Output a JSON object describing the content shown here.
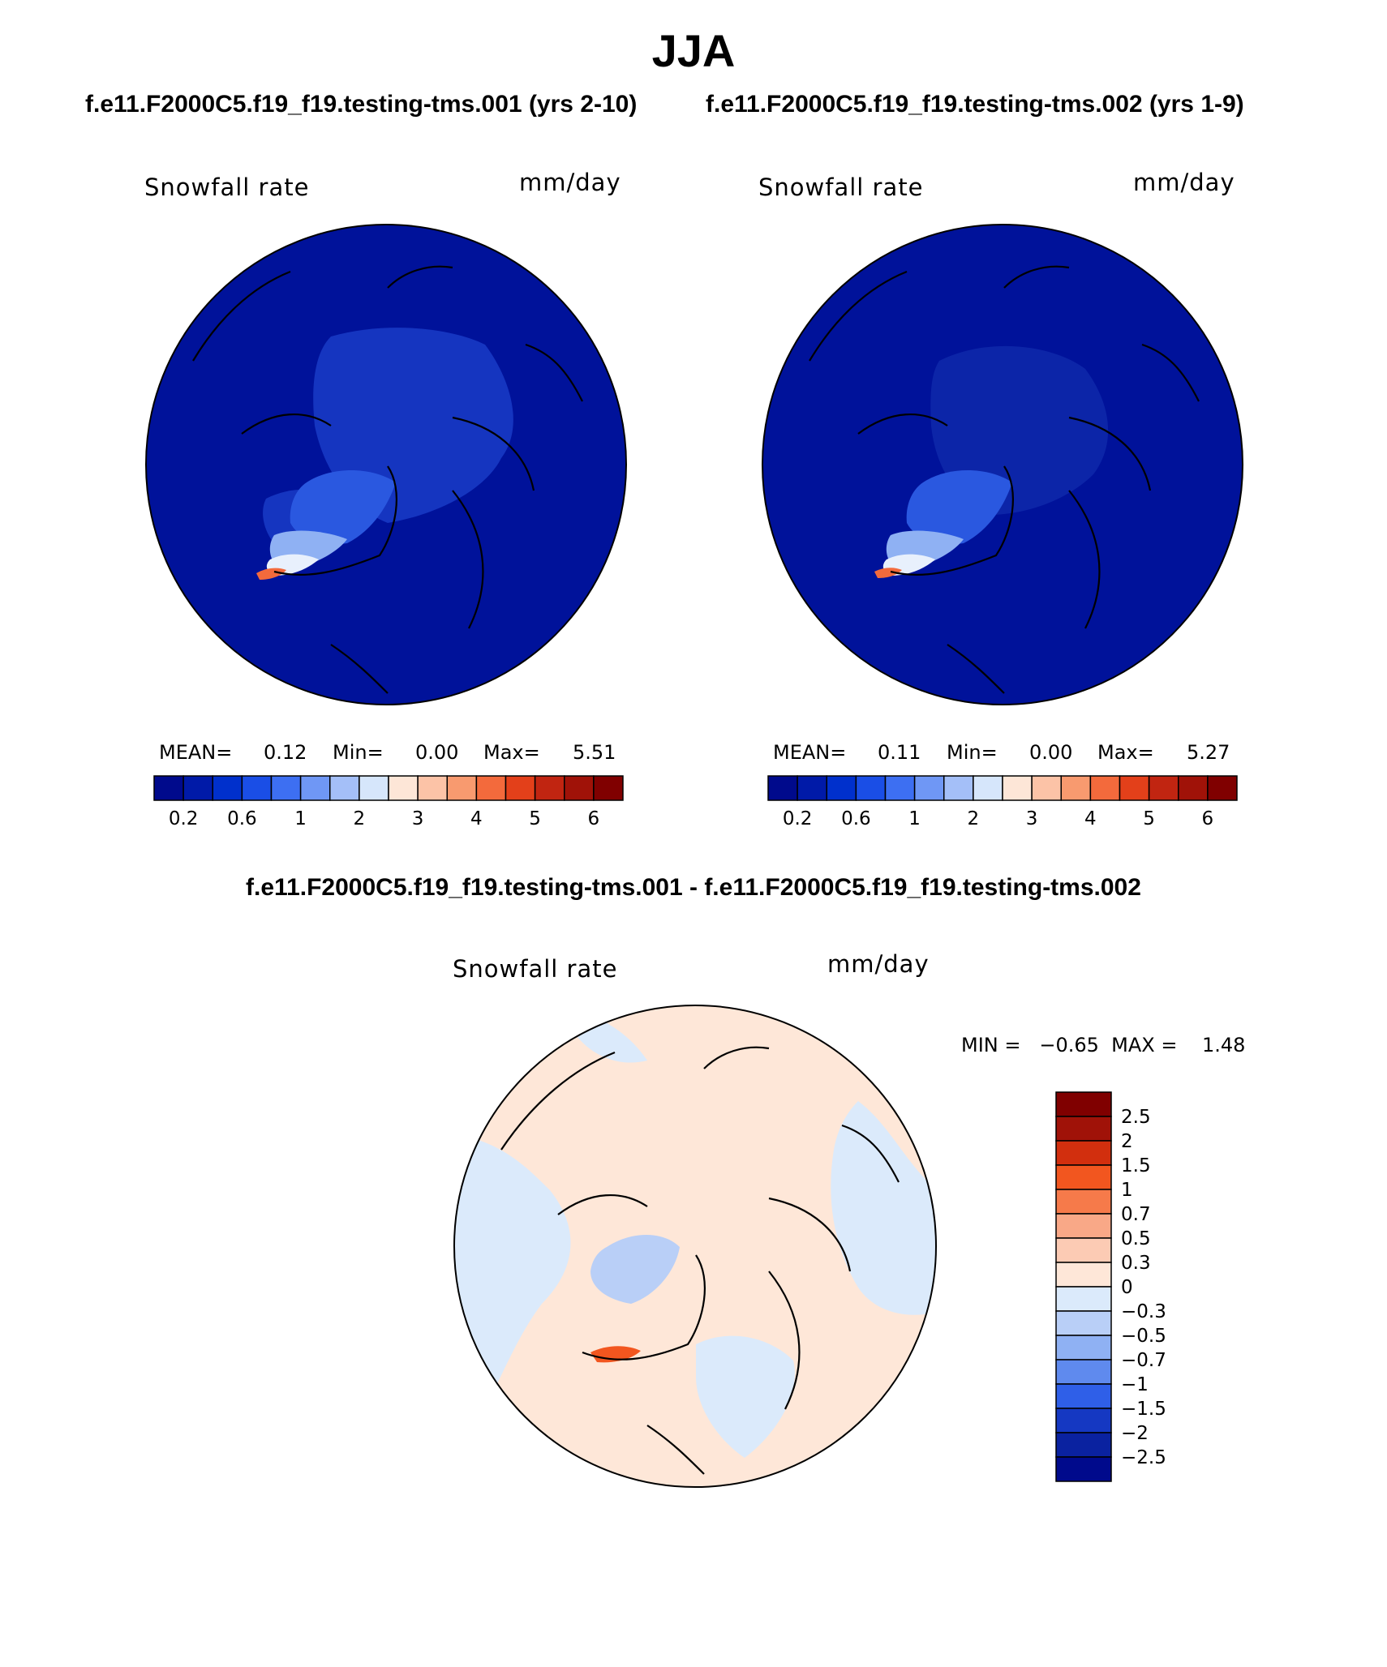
{
  "page": {
    "title": "JJA",
    "left_panel_title": "f.e11.F2000C5.f19_f19.testing-tms.001 (yrs 2-10)",
    "right_panel_title": "f.e11.F2000C5.f19_f19.testing-tms.002 (yrs 1-9)",
    "diff_title": "f.e11.F2000C5.f19_f19.testing-tms.001 - f.e11.F2000C5.f19_f19.testing-tms.002"
  },
  "chart_data": [
    {
      "type": "heatmap",
      "projection": "north-polar-stereographic",
      "variable_label": "Snowfall rate",
      "units": "mm/day",
      "stats": {
        "mean_label": "MEAN=",
        "mean": "0.12",
        "min_label": "Min=",
        "min": "0.00",
        "max_label": "Max=",
        "max": "5.51"
      },
      "colorbar": {
        "orientation": "horizontal",
        "tick_labels": [
          "0.2",
          "0.6",
          "1",
          "2",
          "3",
          "4",
          "5",
          "6"
        ],
        "colors": [
          "#000a8c",
          "#001aa8",
          "#0030cc",
          "#1a4ee6",
          "#3d6ff2",
          "#6f97f5",
          "#a4bff8",
          "#d6e6fb",
          "#fde6d7",
          "#fcc3a7",
          "#f89a6f",
          "#f36a3c",
          "#e3401a",
          "#c12511",
          "#a01208",
          "#800000"
        ]
      }
    },
    {
      "type": "heatmap",
      "projection": "north-polar-stereographic",
      "variable_label": "Snowfall rate",
      "units": "mm/day",
      "stats": {
        "mean_label": "MEAN=",
        "mean": "0.11",
        "min_label": "Min=",
        "min": "0.00",
        "max_label": "Max=",
        "max": "5.27"
      },
      "colorbar": {
        "orientation": "horizontal",
        "tick_labels": [
          "0.2",
          "0.6",
          "1",
          "2",
          "3",
          "4",
          "5",
          "6"
        ],
        "colors": [
          "#000a8c",
          "#001aa8",
          "#0030cc",
          "#1a4ee6",
          "#3d6ff2",
          "#6f97f5",
          "#a4bff8",
          "#d6e6fb",
          "#fde6d7",
          "#fcc3a7",
          "#f89a6f",
          "#f36a3c",
          "#e3401a",
          "#c12511",
          "#a01208",
          "#800000"
        ]
      }
    },
    {
      "type": "heatmap",
      "projection": "north-polar-stereographic",
      "variable_label": "Snowfall rate",
      "units": "mm/day",
      "stats": {
        "text": "MIN =   −0.65  MAX =    1.48"
      },
      "colorbar": {
        "orientation": "vertical",
        "tick_labels": [
          "2.5",
          "2",
          "1.5",
          "1",
          "0.7",
          "0.5",
          "0.3",
          "0",
          "−0.3",
          "−0.5",
          "−0.7",
          "−1",
          "−1.5",
          "−2",
          "−2.5"
        ],
        "colors": [
          "#800000",
          "#a01208",
          "#d22f0e",
          "#f2561f",
          "#f67a4a",
          "#f9a887",
          "#fccbb4",
          "#fee7d8",
          "#dbeafb",
          "#b9cff7",
          "#8fb1f3",
          "#5f8aee",
          "#2f5fe8",
          "#1538c2",
          "#0a22a0",
          "#000a8c"
        ]
      }
    }
  ],
  "colors": {
    "ocean_blue": "#00129a",
    "anomaly_pos": "#fee7d8",
    "anomaly_neg": "#dbeafb"
  }
}
